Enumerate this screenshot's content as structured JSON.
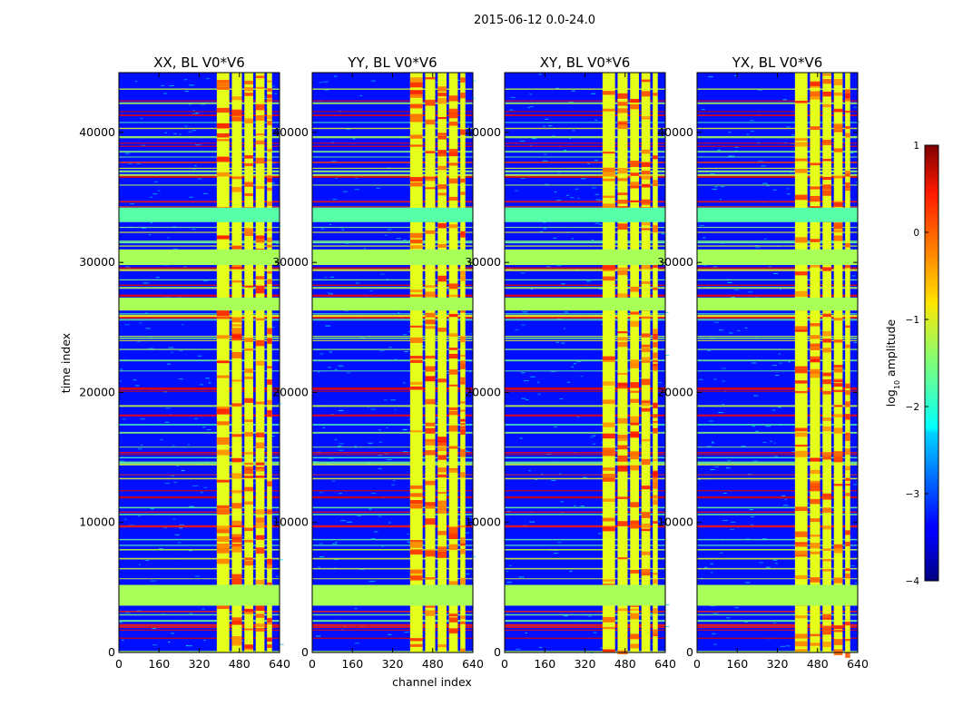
{
  "figure": {
    "suptitle": "2015-06-12 0.0-24.0"
  },
  "chart_data": {
    "type": "heatmap",
    "xlabel": "channel index",
    "ylabel": "time index",
    "xlim": [
      0,
      640
    ],
    "ylim": [
      0,
      44600
    ],
    "xticks": [
      0,
      160,
      320,
      480,
      640
    ],
    "yticks": [
      0,
      10000,
      20000,
      30000,
      40000
    ],
    "colormap": "jet",
    "panels": [
      {
        "title": "XX, BL V0*V6"
      },
      {
        "title": "YY, BL V0*V6"
      },
      {
        "title": "XY, BL V0*V6"
      },
      {
        "title": "YX, BL V0*V6"
      }
    ],
    "colorbar": {
      "label": "log10 amplitude",
      "label_base": "log",
      "label_sub": "10",
      "label_rest": " amplitude",
      "range": [
        -4,
        1
      ],
      "ticks": [
        "1",
        "0",
        "−1",
        "−2",
        "−3",
        "−4"
      ]
    },
    "flagged_time_bands": [
      {
        "start": 3600,
        "end": 5200,
        "log10_amplitude": -1.3
      },
      {
        "start": 26300,
        "end": 27300,
        "log10_amplitude": -1.3
      },
      {
        "start": 29800,
        "end": 31000,
        "log10_amplitude": -1.3
      },
      {
        "start": 33100,
        "end": 34200,
        "log10_amplitude": -1.7
      }
    ],
    "rfi_channel_columns": [
      {
        "start": 390,
        "end": 440
      },
      {
        "start": 450,
        "end": 490
      },
      {
        "start": 500,
        "end": 535
      },
      {
        "start": 545,
        "end": 580
      },
      {
        "start": 590,
        "end": 610
      }
    ],
    "background_log10_amplitude": -3.3
  }
}
